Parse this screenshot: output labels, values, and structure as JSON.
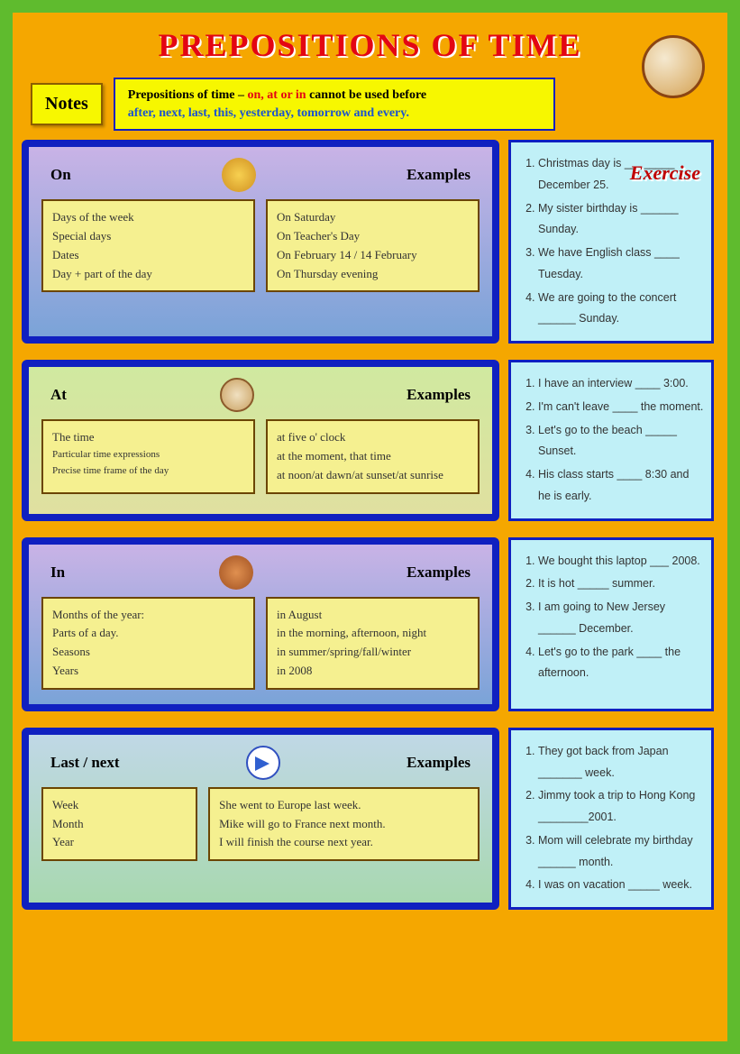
{
  "title": "PREPOSITIONS OF TIME",
  "notes_badge": "Notes",
  "notes": {
    "l1a": "Prepositions of time – ",
    "l1b": "on, at or in",
    "l1c": " cannot be used before",
    "l2": "after, next, last, this, yesterday, tomorrow and every."
  },
  "exercise_label": "Exercise",
  "cards": [
    {
      "heading": "On",
      "examples_label": "Examples",
      "icon": "monday",
      "rules": [
        "Days of the week",
        "Special days",
        "Dates",
        "Day + part of the day"
      ],
      "examples": [
        "On Saturday",
        "On Teacher's Day",
        "On February 14 / 14 February",
        "On Thursday evening"
      ],
      "exercise": [
        "Christmas day is ________ December 25.",
        "My sister birthday is ______ Sunday.",
        "We have English class ____ Tuesday.",
        "We are going to the concert ______ Sunday."
      ]
    },
    {
      "heading": "At",
      "examples_label": "Examples",
      "icon": "clock",
      "rules": [
        "The time",
        "Particular time expressions",
        "Precise time frame of the day"
      ],
      "rules_small": [
        false,
        true,
        true
      ],
      "examples": [
        "at five o' clock",
        "at the moment, that time",
        "at noon/at dawn/at sunset/at sunrise"
      ],
      "exercise": [
        "I have an interview ____ 3:00.",
        "I'm can't leave ____ the moment.",
        "Let's go to the beach _____ Sunset.",
        "His class starts ____ 8:30 and he is early."
      ]
    },
    {
      "heading": "In",
      "examples_label": "Examples",
      "icon": "leaves",
      "rules": [
        "Months of the year:",
        "Parts of a day.",
        "Seasons",
        "Years"
      ],
      "examples": [
        "in August",
        "in the morning, afternoon, night",
        "in summer/spring/fall/winter",
        "in 2008"
      ],
      "exercise": [
        "We bought this laptop ___ 2008.",
        "It is hot _____ summer.",
        "I am going to New Jersey ______ December.",
        "Let's go to the park ____ the afternoon."
      ]
    },
    {
      "heading": "Last / next",
      "examples_label": "Examples",
      "icon": "arrow",
      "rules": [
        "Week",
        "Month",
        "Year"
      ],
      "examples": [
        "She went to Europe last week.",
        "Mike will go to France next month.",
        "I will finish the course next year."
      ],
      "exercise": [
        "They got back from Japan _______  week.",
        "Jimmy took a trip to Hong Kong ________2001.",
        "Mom will celebrate my birthday ______ month.",
        "I was on vacation _____ week."
      ]
    }
  ]
}
